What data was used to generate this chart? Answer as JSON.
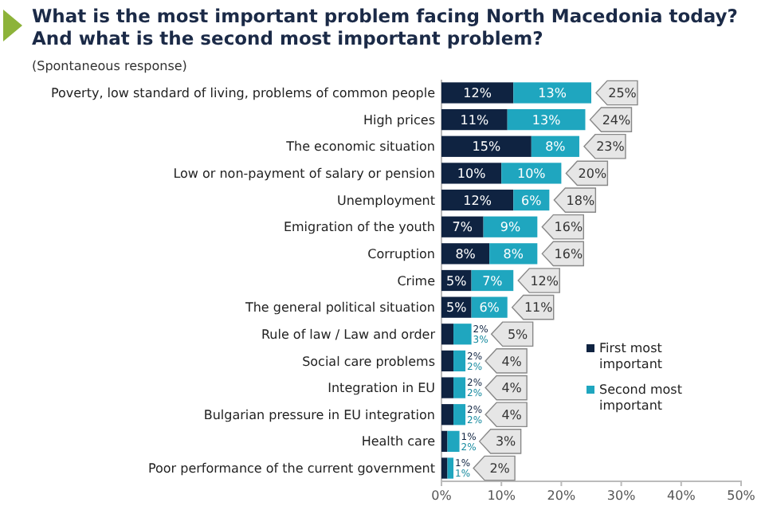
{
  "chart_data": {
    "type": "bar",
    "orientation": "horizontal",
    "stacked": true,
    "title": "What is the most important problem facing North Macedonia today? And what is the second most important problem?",
    "subtitle": "(Spontaneous response)",
    "categories": [
      "Poverty, low standard of living, problems of common people",
      "High prices",
      "The economic situation",
      "Low or non-payment of salary or pension",
      "Unemployment",
      "Emigration of the youth",
      "Corruption",
      "Crime",
      "The general political situation",
      "Rule of law / Law and order",
      "Social care problems",
      "Integration in EU",
      "Bulgarian pressure in EU integration",
      "Health care",
      "Poor performance of the current government"
    ],
    "series": [
      {
        "name": "First most important",
        "color": "#0f2341",
        "values": [
          12,
          11,
          15,
          10,
          12,
          7,
          8,
          5,
          5,
          2,
          2,
          2,
          2,
          1,
          1
        ],
        "value_labels": [
          "12%",
          "11%",
          "15%",
          "10%",
          "12%",
          "7%",
          "8%",
          "5%",
          "5%",
          "2%",
          "2%",
          "2%",
          "2%",
          "1%",
          "1%"
        ]
      },
      {
        "name": "Second most important",
        "color": "#1fa6bf",
        "values": [
          13,
          13,
          8,
          10,
          6,
          9,
          8,
          7,
          6,
          3,
          2,
          2,
          2,
          2,
          1
        ],
        "value_labels": [
          "13%",
          "13%",
          "8%",
          "10%",
          "6%",
          "9%",
          "8%",
          "7%",
          "6%",
          "3%",
          "2%",
          "2%",
          "2%",
          "2%",
          "1%"
        ]
      }
    ],
    "totals": [
      "25%",
      "24%",
      "23%",
      "20%",
      "18%",
      "16%",
      "16%",
      "12%",
      "11%",
      "5%",
      "4%",
      "4%",
      "4%",
      "3%",
      "2%"
    ],
    "xlim": [
      0,
      50
    ],
    "xticks": [
      {
        "value": 0,
        "label": "0%"
      },
      {
        "value": 10,
        "label": "10%"
      },
      {
        "value": 20,
        "label": "20%"
      },
      {
        "value": 30,
        "label": "30%"
      },
      {
        "value": 40,
        "label": "40%"
      },
      {
        "value": 50,
        "label": "50%"
      }
    ],
    "grid": false,
    "legend": "right"
  }
}
